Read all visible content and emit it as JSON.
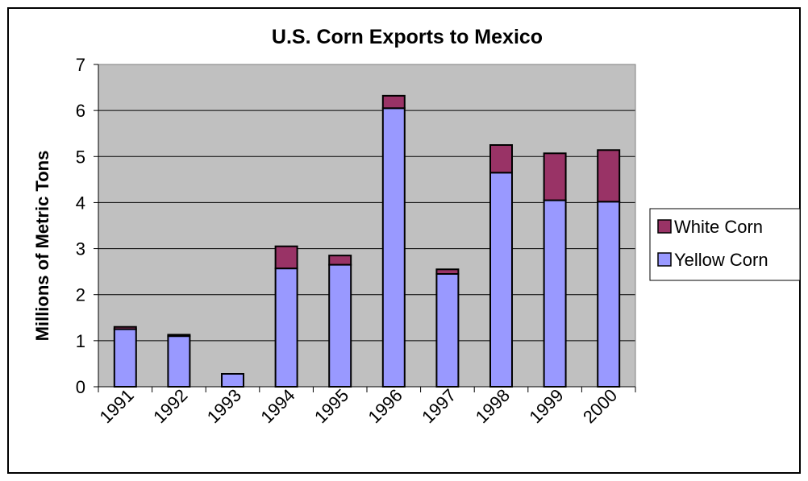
{
  "chart_data": {
    "type": "bar",
    "stacked": true,
    "title": "U.S. Corn Exports to Mexico",
    "xlabel": "",
    "ylabel": "Millions of Metric Tons",
    "categories": [
      "1991",
      "1992",
      "1993",
      "1994",
      "1995",
      "1996",
      "1997",
      "1998",
      "1999",
      "2000"
    ],
    "ylim": [
      0,
      7
    ],
    "yticks": [
      0,
      1,
      2,
      3,
      4,
      5,
      6,
      7
    ],
    "grid": true,
    "legend_position": "right",
    "series": [
      {
        "name": "Yellow Corn",
        "color": "#9999ff",
        "values": [
          1.25,
          1.1,
          0.28,
          2.57,
          2.65,
          6.05,
          2.45,
          4.65,
          4.05,
          4.02
        ]
      },
      {
        "name": "White Corn",
        "color": "#993366",
        "values": [
          0.05,
          0.03,
          0.0,
          0.48,
          0.2,
          0.27,
          0.1,
          0.6,
          1.02,
          1.12
        ]
      }
    ],
    "plot_background": "#c0c0c0"
  }
}
